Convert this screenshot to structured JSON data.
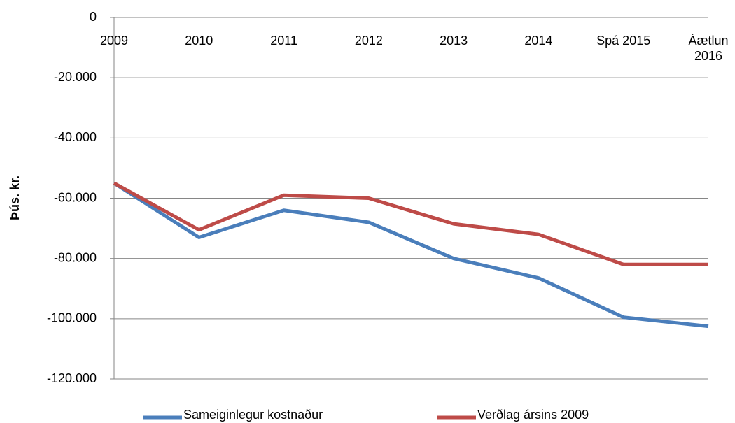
{
  "chart_data": {
    "type": "line",
    "y_label": "Þús. kr.",
    "categories": [
      "2009",
      "2010",
      "2011",
      "2012",
      "2013",
      "2014",
      "Spá 2015",
      "Áætlun 2016"
    ],
    "series": [
      {
        "name": "Sameiginlegur kostnaður",
        "color": "#4a7ebb",
        "values": [
          -55000,
          -73000,
          -64000,
          -68000,
          -80000,
          -86500,
          -99500,
          -102500
        ]
      },
      {
        "name": "Verðlag ársins 2009",
        "color": "#be4b48",
        "values": [
          -55000,
          -70500,
          -59000,
          -60000,
          -68500,
          -72000,
          -82000,
          -82000
        ]
      }
    ],
    "ylim": [
      -120000,
      0
    ],
    "yticks": [
      0,
      {
        "value": -20000,
        "label": "-20.000"
      },
      {
        "value": -40000,
        "label": "-40.000"
      },
      {
        "value": -60000,
        "label": "-60.000"
      },
      {
        "value": -80000,
        "label": "-80.000"
      },
      {
        "value": -100000,
        "label": "-100.000"
      },
      {
        "value": -120000,
        "label": "-120.000"
      }
    ],
    "grid": true
  }
}
